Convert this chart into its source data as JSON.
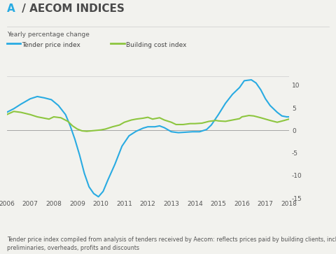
{
  "title_prefix": "A",
  "title_slash": " / AECOM INDICES",
  "subtitle": "Yearly percentage change",
  "legend_items": [
    "Tender price index",
    "Building cost index"
  ],
  "legend_colors": [
    "#29abe2",
    "#8dc63f"
  ],
  "footnote_line1": "Tender price index compiled from analysis of tenders received by Aecom: reflects prices paid by building clients, inclusive of",
  "footnote_line2": "preliminaries, overheads, profits and discounts",
  "xlim": [
    2006,
    2018
  ],
  "ylim": [
    -15,
    12
  ],
  "yticks": [
    -15,
    -10,
    -5,
    0,
    5,
    10
  ],
  "xticks": [
    2006,
    2007,
    2008,
    2009,
    2010,
    2011,
    2012,
    2013,
    2014,
    2015,
    2016,
    2017,
    2018
  ],
  "background_color": "#f2f2ee",
  "tender_price_index": {
    "x": [
      2006.0,
      2006.3,
      2006.6,
      2007.0,
      2007.3,
      2007.6,
      2007.9,
      2008.2,
      2008.5,
      2008.7,
      2008.9,
      2009.1,
      2009.3,
      2009.5,
      2009.7,
      2009.9,
      2010.1,
      2010.3,
      2010.6,
      2010.9,
      2011.2,
      2011.5,
      2011.8,
      2012.0,
      2012.3,
      2012.5,
      2012.7,
      2013.0,
      2013.3,
      2013.6,
      2013.9,
      2014.2,
      2014.5,
      2014.7,
      2015.0,
      2015.3,
      2015.6,
      2015.9,
      2016.1,
      2016.4,
      2016.6,
      2016.8,
      2017.0,
      2017.2,
      2017.5,
      2017.7,
      2017.9,
      2018.0
    ],
    "y": [
      4.0,
      4.8,
      5.8,
      7.0,
      7.5,
      7.2,
      6.8,
      5.5,
      3.5,
      1.0,
      -2.0,
      -5.5,
      -9.5,
      -12.5,
      -14.0,
      -14.7,
      -13.5,
      -11.0,
      -7.5,
      -3.5,
      -1.2,
      -0.2,
      0.5,
      0.8,
      0.8,
      1.0,
      0.6,
      -0.3,
      -0.5,
      -0.4,
      -0.3,
      -0.3,
      0.2,
      1.2,
      3.5,
      6.0,
      8.0,
      9.5,
      11.0,
      11.2,
      10.5,
      9.0,
      7.0,
      5.5,
      4.0,
      3.2,
      3.0,
      3.0
    ]
  },
  "building_cost_index": {
    "x": [
      2006.0,
      2006.3,
      2006.6,
      2007.0,
      2007.3,
      2007.5,
      2007.8,
      2008.0,
      2008.3,
      2008.6,
      2008.8,
      2009.0,
      2009.2,
      2009.4,
      2009.6,
      2009.8,
      2010.0,
      2010.2,
      2010.5,
      2010.8,
      2011.0,
      2011.3,
      2011.5,
      2011.8,
      2012.0,
      2012.2,
      2012.5,
      2012.7,
      2013.0,
      2013.2,
      2013.5,
      2013.8,
      2014.0,
      2014.3,
      2014.6,
      2014.9,
      2015.0,
      2015.3,
      2015.6,
      2015.9,
      2016.0,
      2016.3,
      2016.5,
      2016.8,
      2017.0,
      2017.2,
      2017.5,
      2017.8,
      2018.0
    ],
    "y": [
      3.5,
      4.2,
      4.0,
      3.5,
      3.0,
      2.8,
      2.5,
      3.0,
      2.8,
      2.0,
      1.0,
      0.3,
      -0.1,
      -0.2,
      -0.1,
      0.0,
      0.1,
      0.3,
      0.8,
      1.2,
      1.8,
      2.3,
      2.5,
      2.7,
      2.9,
      2.5,
      2.8,
      2.3,
      1.8,
      1.3,
      1.3,
      1.5,
      1.5,
      1.6,
      2.0,
      2.2,
      2.1,
      2.0,
      2.3,
      2.6,
      3.0,
      3.3,
      3.2,
      2.8,
      2.5,
      2.2,
      1.8,
      2.2,
      2.5
    ]
  }
}
